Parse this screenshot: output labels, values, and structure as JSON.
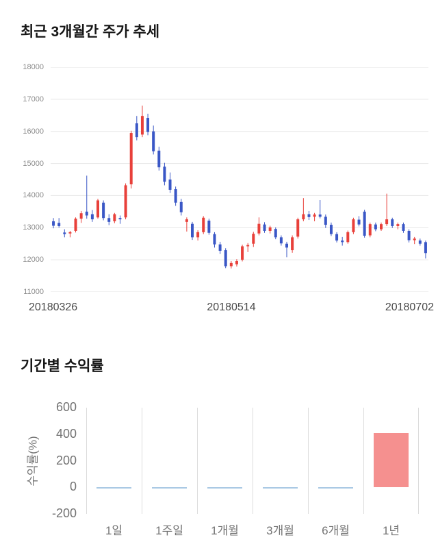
{
  "chart_data": [
    {
      "type": "candlestick",
      "title": "최근 3개월간 주가 추세",
      "ylim": [
        11000,
        18000
      ],
      "yticks": [
        18000,
        17000,
        16000,
        15000,
        14000,
        13000,
        12000,
        11000
      ],
      "x_labels": [
        "20180326",
        "20180514",
        "20180702"
      ],
      "colors": {
        "up": "#e8403a",
        "down": "#3a57c6",
        "grid": "#e6e6e6"
      },
      "grid": true,
      "legend": "none",
      "candles": [
        [
          13200,
          13300,
          12980,
          13060
        ],
        [
          13150,
          13300,
          13000,
          13050
        ],
        [
          12850,
          12950,
          12700,
          12800
        ],
        [
          12820,
          12900,
          12700,
          12860
        ],
        [
          12900,
          13320,
          12850,
          13280
        ],
        [
          13280,
          13520,
          13150,
          13450
        ],
        [
          13500,
          14620,
          13280,
          13380
        ],
        [
          13420,
          13550,
          13180,
          13260
        ],
        [
          13320,
          13900,
          13280,
          13850
        ],
        [
          13780,
          13850,
          13230,
          13300
        ],
        [
          13300,
          13420,
          13080,
          13180
        ],
        [
          13200,
          13460,
          13140,
          13420
        ],
        [
          13300,
          13380,
          13120,
          13260
        ],
        [
          13320,
          14380,
          13260,
          14320
        ],
        [
          14350,
          16020,
          14220,
          15950
        ],
        [
          16250,
          16480,
          15720,
          15820
        ],
        [
          15900,
          16800,
          15820,
          16480
        ],
        [
          16420,
          16550,
          15880,
          15980
        ],
        [
          16000,
          16180,
          15280,
          15380
        ],
        [
          15400,
          15520,
          14780,
          14880
        ],
        [
          14900,
          15020,
          14320,
          14430
        ],
        [
          14500,
          14720,
          14080,
          14180
        ],
        [
          14200,
          14280,
          13680,
          13780
        ],
        [
          13800,
          13900,
          13380,
          13480
        ],
        [
          13180,
          13320,
          12880,
          13260
        ],
        [
          13120,
          13180,
          12620,
          12700
        ],
        [
          12700,
          12920,
          12600,
          12860
        ],
        [
          12860,
          13360,
          12800,
          13310
        ],
        [
          13220,
          13280,
          12780,
          12840
        ],
        [
          12800,
          12860,
          12380,
          12480
        ],
        [
          12480,
          12560,
          12180,
          12280
        ],
        [
          12300,
          12360,
          11740,
          11800
        ],
        [
          11800,
          11960,
          11730,
          11900
        ],
        [
          11860,
          12020,
          11790,
          11960
        ],
        [
          12000,
          12470,
          11950,
          12420
        ],
        [
          12420,
          12520,
          12240,
          12460
        ],
        [
          12500,
          12870,
          12400,
          12810
        ],
        [
          12820,
          13320,
          12760,
          13120
        ],
        [
          13100,
          13170,
          12840,
          12900
        ],
        [
          12900,
          13060,
          12820,
          13010
        ],
        [
          12960,
          13010,
          12640,
          12700
        ],
        [
          12700,
          12760,
          12440,
          12510
        ],
        [
          12500,
          12560,
          12080,
          12380
        ],
        [
          12300,
          12760,
          12220,
          12700
        ],
        [
          12720,
          13310,
          12660,
          13260
        ],
        [
          13260,
          13920,
          13200,
          13420
        ],
        [
          13420,
          13520,
          13240,
          13330
        ],
        [
          13340,
          13460,
          13200,
          13410
        ],
        [
          13410,
          13860,
          13290,
          13340
        ],
        [
          13340,
          13410,
          12990,
          13090
        ],
        [
          13090,
          13160,
          12740,
          12800
        ],
        [
          12800,
          12860,
          12540,
          12600
        ],
        [
          12600,
          12710,
          12440,
          12550
        ],
        [
          12550,
          12910,
          12500,
          12860
        ],
        [
          12860,
          13310,
          12800,
          13260
        ],
        [
          13250,
          13360,
          13040,
          13100
        ],
        [
          13500,
          13560,
          12690,
          12750
        ],
        [
          12760,
          13160,
          12700,
          13110
        ],
        [
          13100,
          13160,
          12890,
          12950
        ],
        [
          12950,
          13160,
          12900,
          13110
        ],
        [
          13110,
          14060,
          13050,
          13260
        ],
        [
          13260,
          13310,
          12990,
          13050
        ],
        [
          13050,
          13160,
          12950,
          13110
        ],
        [
          13110,
          13160,
          12840,
          12900
        ],
        [
          12900,
          12950,
          12540,
          12610
        ],
        [
          12610,
          12710,
          12490,
          12660
        ],
        [
          12600,
          12660,
          12440,
          12500
        ],
        [
          12550,
          12600,
          12040,
          12210
        ]
      ]
    },
    {
      "type": "bar",
      "title": "기간별 수익률",
      "ylabel": "수익률(%)",
      "categories": [
        "1일",
        "1주일",
        "1개월",
        "3개월",
        "6개월",
        "1년"
      ],
      "values": [
        -1,
        -2,
        -1,
        -3,
        -6,
        410
      ],
      "ylim": [
        -200,
        600
      ],
      "yticks": [
        600,
        400,
        200,
        0,
        -200
      ],
      "colors": {
        "positive": "#f5908f",
        "negative": "#a9c8e4",
        "grid": "#dcdcdc"
      },
      "grid": true,
      "legend": "none"
    }
  ]
}
